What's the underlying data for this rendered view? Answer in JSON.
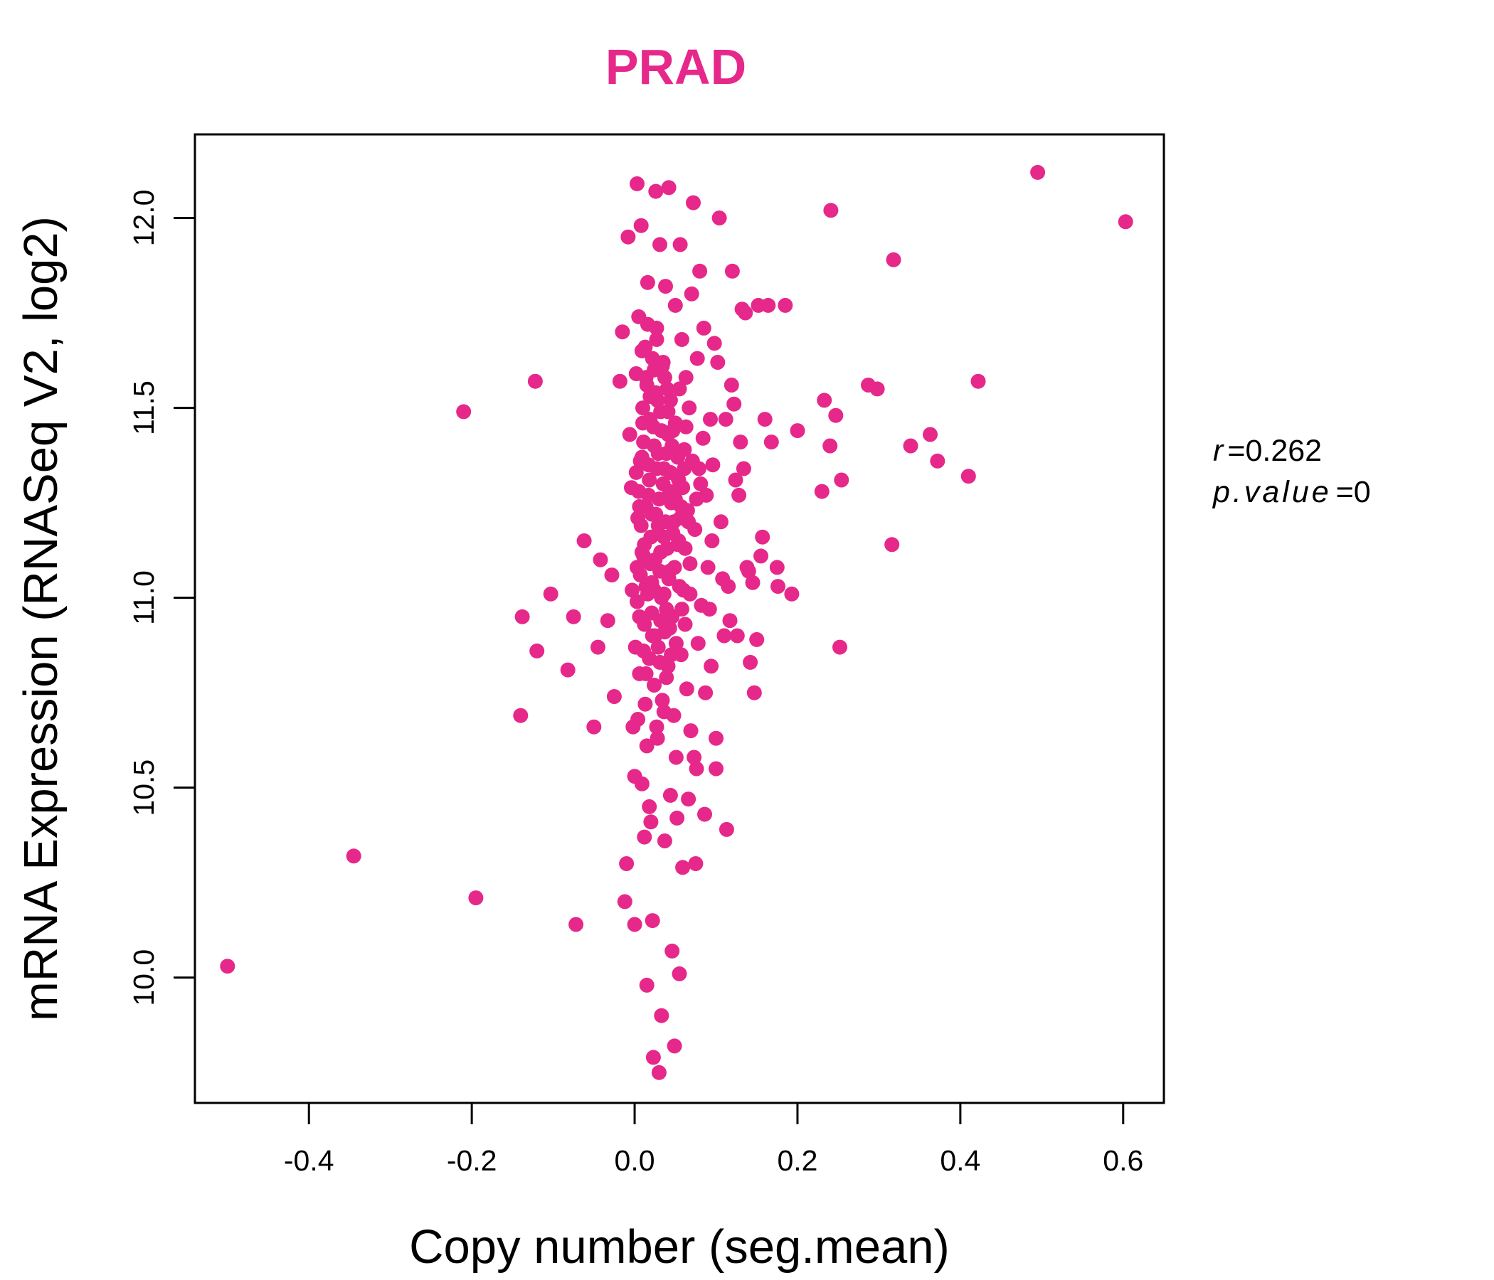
{
  "chart_data": {
    "type": "scatter",
    "title": "PRAD",
    "xlabel": "Copy number (seg.mean)",
    "ylabel": "mRNA Expression (RNASeq V2, log2)",
    "xlim": [
      -0.54,
      0.65
    ],
    "ylim": [
      9.67,
      12.22
    ],
    "x_ticks": [
      -0.4,
      -0.2,
      0.0,
      0.2,
      0.4,
      0.6
    ],
    "x_tick_labels": [
      "-0.4",
      "-0.2",
      "0.0",
      "0.2",
      "0.4",
      "0.6"
    ],
    "y_ticks": [
      10.0,
      10.5,
      11.0,
      11.5,
      12.0
    ],
    "y_tick_labels": [
      "10.0",
      "10.5",
      "11.0",
      "11.5",
      "12.0"
    ],
    "color": "#e6288a",
    "stats": {
      "r_label": "r",
      "r_value": "0.262",
      "p_label": "p.value",
      "p_value": "0"
    },
    "points": [
      [
        -0.5,
        10.03
      ],
      [
        -0.345,
        10.32
      ],
      [
        -0.21,
        11.49
      ],
      [
        -0.195,
        10.21
      ],
      [
        -0.14,
        10.69
      ],
      [
        -0.138,
        10.95
      ],
      [
        -0.122,
        11.57
      ],
      [
        -0.12,
        10.86
      ],
      [
        -0.103,
        11.01
      ],
      [
        -0.082,
        10.81
      ],
      [
        -0.075,
        10.95
      ],
      [
        -0.072,
        10.14
      ],
      [
        -0.062,
        11.15
      ],
      [
        -0.05,
        10.66
      ],
      [
        -0.045,
        10.87
      ],
      [
        -0.042,
        11.1
      ],
      [
        -0.033,
        10.94
      ],
      [
        -0.028,
        11.06
      ],
      [
        -0.025,
        10.74
      ],
      [
        -0.018,
        11.57
      ],
      [
        -0.015,
        11.7
      ],
      [
        -0.012,
        10.2
      ],
      [
        -0.01,
        10.3
      ],
      [
        -0.008,
        11.95
      ],
      [
        -0.006,
        11.43
      ],
      [
        -0.004,
        11.29
      ],
      [
        -0.003,
        11.02
      ],
      [
        -0.002,
        10.66
      ],
      [
        0.0,
        10.14
      ],
      [
        0.0,
        10.53
      ],
      [
        0.001,
        10.87
      ],
      [
        0.002,
        11.59
      ],
      [
        0.003,
        12.09
      ],
      [
        0.004,
        11.21
      ],
      [
        0.005,
        11.74
      ],
      [
        0.006,
        10.95
      ],
      [
        0.007,
        11.36
      ],
      [
        0.008,
        11.98
      ],
      [
        0.009,
        10.51
      ],
      [
        0.01,
        11.46
      ],
      [
        0.011,
        11.11
      ],
      [
        0.012,
        10.37
      ],
      [
        0.013,
        11.66
      ],
      [
        0.014,
        10.8
      ],
      [
        0.015,
        9.98
      ],
      [
        0.016,
        11.83
      ],
      [
        0.017,
        11.27
      ],
      [
        0.018,
        10.45
      ],
      [
        0.019,
        11.53
      ],
      [
        0.02,
        10.41
      ],
      [
        0.021,
        11.04
      ],
      [
        0.022,
        10.15
      ],
      [
        0.023,
        9.79
      ],
      [
        0.024,
        11.4
      ],
      [
        0.025,
        10.9
      ],
      [
        0.026,
        12.07
      ],
      [
        0.027,
        11.71
      ],
      [
        0.028,
        10.63
      ],
      [
        0.029,
        11.19
      ],
      [
        0.03,
        9.75
      ],
      [
        0.031,
        11.93
      ],
      [
        0.032,
        11.49
      ],
      [
        0.033,
        9.9
      ],
      [
        0.034,
        10.73
      ],
      [
        0.035,
        11.62
      ],
      [
        0.036,
        11.34
      ],
      [
        0.037,
        10.36
      ],
      [
        0.038,
        11.82
      ],
      [
        0.039,
        10.97
      ],
      [
        0.04,
        11.55
      ],
      [
        0.041,
        10.82
      ],
      [
        0.042,
        12.08
      ],
      [
        0.043,
        11.07
      ],
      [
        0.044,
        10.48
      ],
      [
        0.045,
        11.25
      ],
      [
        0.046,
        10.07
      ],
      [
        0.047,
        11.44
      ],
      [
        0.048,
        10.69
      ],
      [
        0.049,
        9.82
      ],
      [
        0.05,
        11.77
      ],
      [
        0.051,
        10.58
      ],
      [
        0.052,
        10.42
      ],
      [
        0.053,
        11.14
      ],
      [
        0.054,
        11.31
      ],
      [
        0.055,
        10.01
      ],
      [
        0.056,
        11.93
      ],
      [
        0.057,
        10.85
      ],
      [
        0.058,
        11.68
      ],
      [
        0.059,
        10.29
      ],
      [
        0.06,
        11.02
      ],
      [
        0.061,
        11.39
      ],
      [
        0.062,
        10.93
      ],
      [
        0.063,
        11.58
      ],
      [
        0.064,
        10.76
      ],
      [
        0.065,
        11.23
      ],
      [
        0.066,
        10.47
      ],
      [
        0.067,
        11.5
      ],
      [
        0.068,
        11.09
      ],
      [
        0.069,
        10.65
      ],
      [
        0.07,
        11.8
      ],
      [
        0.072,
        12.04
      ],
      [
        0.073,
        10.58
      ],
      [
        0.074,
        11.18
      ],
      [
        0.075,
        10.3
      ],
      [
        0.076,
        10.55
      ],
      [
        0.077,
        11.63
      ],
      [
        0.078,
        10.88
      ],
      [
        0.079,
        11.34
      ],
      [
        0.08,
        11.86
      ],
      [
        0.082,
        10.98
      ],
      [
        0.084,
        11.42
      ],
      [
        0.085,
        11.71
      ],
      [
        0.086,
        10.43
      ],
      [
        0.087,
        10.75
      ],
      [
        0.088,
        11.27
      ],
      [
        0.09,
        11.08
      ],
      [
        0.092,
        10.97
      ],
      [
        0.093,
        11.47
      ],
      [
        0.094,
        10.82
      ],
      [
        0.095,
        11.15
      ],
      [
        0.096,
        11.35
      ],
      [
        0.098,
        11.67
      ],
      [
        0.1,
        10.63
      ],
      [
        0.1,
        10.55
      ],
      [
        0.102,
        11.62
      ],
      [
        0.104,
        12.0
      ],
      [
        0.106,
        11.2
      ],
      [
        0.108,
        11.05
      ],
      [
        0.11,
        10.9
      ],
      [
        0.112,
        11.47
      ],
      [
        0.113,
        10.39
      ],
      [
        0.115,
        11.03
      ],
      [
        0.117,
        10.94
      ],
      [
        0.119,
        11.56
      ],
      [
        0.12,
        11.86
      ],
      [
        0.122,
        11.51
      ],
      [
        0.124,
        11.31
      ],
      [
        0.126,
        10.9
      ],
      [
        0.128,
        11.27
      ],
      [
        0.13,
        11.41
      ],
      [
        0.132,
        11.76
      ],
      [
        0.134,
        11.34
      ],
      [
        0.136,
        11.75
      ],
      [
        0.138,
        11.08
      ],
      [
        0.14,
        11.07
      ],
      [
        0.142,
        10.83
      ],
      [
        0.145,
        11.04
      ],
      [
        0.147,
        10.75
      ],
      [
        0.15,
        10.89
      ],
      [
        0.152,
        11.77
      ],
      [
        0.155,
        11.11
      ],
      [
        0.157,
        11.16
      ],
      [
        0.16,
        11.47
      ],
      [
        0.164,
        11.77
      ],
      [
        0.168,
        11.41
      ],
      [
        0.175,
        11.08
      ],
      [
        0.176,
        11.03
      ],
      [
        0.185,
        11.77
      ],
      [
        0.193,
        11.01
      ],
      [
        0.2,
        11.44
      ],
      [
        0.23,
        11.28
      ],
      [
        0.233,
        11.52
      ],
      [
        0.24,
        11.4
      ],
      [
        0.241,
        12.02
      ],
      [
        0.247,
        11.48
      ],
      [
        0.252,
        10.87
      ],
      [
        0.254,
        11.31
      ],
      [
        0.287,
        11.56
      ],
      [
        0.298,
        11.55
      ],
      [
        0.316,
        11.14
      ],
      [
        0.318,
        11.89
      ],
      [
        0.339,
        11.4
      ],
      [
        0.363,
        11.43
      ],
      [
        0.372,
        11.36
      ],
      [
        0.41,
        11.32
      ],
      [
        0.422,
        11.57
      ],
      [
        0.495,
        12.12
      ],
      [
        0.603,
        11.99
      ],
      [
        0.005,
        11.28
      ],
      [
        0.008,
        11.19
      ],
      [
        0.011,
        11.41
      ],
      [
        0.014,
        11.24
      ],
      [
        0.017,
        11.35
      ],
      [
        0.02,
        11.16
      ],
      [
        0.023,
        11.45
      ],
      [
        0.026,
        11.22
      ],
      [
        0.029,
        11.38
      ],
      [
        0.032,
        11.12
      ],
      [
        0.035,
        11.3
      ],
      [
        0.038,
        11.2
      ],
      [
        0.041,
        11.43
      ],
      [
        0.044,
        11.33
      ],
      [
        0.047,
        11.17
      ],
      [
        0.05,
        11.26
      ],
      [
        0.053,
        11.37
      ],
      [
        0.056,
        11.21
      ],
      [
        0.059,
        11.29
      ],
      [
        0.062,
        11.13
      ],
      [
        0.003,
        10.99
      ],
      [
        0.007,
        11.06
      ],
      [
        0.012,
        10.93
      ],
      [
        0.016,
        11.01
      ],
      [
        0.021,
        10.96
      ],
      [
        0.025,
        11.1
      ],
      [
        0.029,
        10.87
      ],
      [
        0.033,
        11.0
      ],
      [
        0.037,
        10.91
      ],
      [
        0.042,
        11.05
      ],
      [
        0.046,
        10.95
      ],
      [
        0.051,
        10.88
      ],
      [
        0.055,
        11.03
      ],
      [
        0.01,
        11.5
      ],
      [
        0.015,
        11.56
      ],
      [
        0.019,
        11.47
      ],
      [
        0.024,
        11.6
      ],
      [
        0.028,
        11.52
      ],
      [
        0.033,
        11.44
      ],
      [
        0.037,
        11.58
      ],
      [
        0.041,
        11.49
      ],
      [
        0.046,
        11.4
      ],
      [
        0.05,
        11.46
      ],
      [
        0.006,
        10.8
      ],
      [
        0.013,
        10.72
      ],
      [
        0.018,
        10.84
      ],
      [
        0.024,
        10.77
      ],
      [
        0.031,
        10.83
      ],
      [
        0.039,
        10.79
      ],
      [
        0.045,
        10.85
      ],
      [
        0.009,
        11.65
      ],
      [
        0.016,
        11.72
      ],
      [
        0.022,
        11.63
      ],
      [
        0.027,
        11.68
      ],
      [
        0.034,
        11.61
      ],
      [
        0.004,
        10.68
      ],
      [
        0.015,
        10.61
      ],
      [
        0.027,
        10.66
      ],
      [
        0.036,
        10.7
      ],
      [
        0.002,
        11.33
      ],
      [
        0.006,
        11.24
      ],
      [
        0.009,
        11.37
      ],
      [
        0.012,
        11.14
      ],
      [
        0.018,
        11.31
      ],
      [
        0.021,
        11.22
      ],
      [
        0.027,
        11.34
      ],
      [
        0.03,
        11.26
      ],
      [
        0.036,
        11.16
      ],
      [
        0.039,
        11.38
      ],
      [
        0.043,
        11.28
      ],
      [
        0.048,
        11.2
      ],
      [
        0.052,
        11.32
      ],
      [
        0.057,
        11.24
      ],
      [
        0.061,
        11.34
      ],
      [
        0.066,
        11.2
      ],
      [
        0.071,
        11.36
      ],
      [
        0.076,
        11.26
      ],
      [
        0.081,
        11.3
      ],
      [
        0.003,
        11.08
      ],
      [
        0.009,
        11.12
      ],
      [
        0.014,
        11.03
      ],
      [
        0.019,
        11.09
      ],
      [
        0.024,
        11.02
      ],
      [
        0.031,
        11.07
      ],
      [
        0.036,
        11.01
      ],
      [
        0.04,
        11.13
      ],
      [
        0.049,
        11.08
      ],
      [
        0.054,
        11.15
      ],
      [
        0.011,
        10.86
      ],
      [
        0.022,
        10.9
      ],
      [
        0.032,
        10.94
      ],
      [
        0.043,
        10.92
      ],
      [
        0.058,
        10.97
      ],
      [
        0.068,
        11.01
      ],
      [
        0.014,
        11.58
      ],
      [
        0.026,
        11.54
      ],
      [
        0.044,
        11.52
      ],
      [
        0.055,
        11.55
      ],
      [
        0.063,
        11.45
      ]
    ]
  }
}
